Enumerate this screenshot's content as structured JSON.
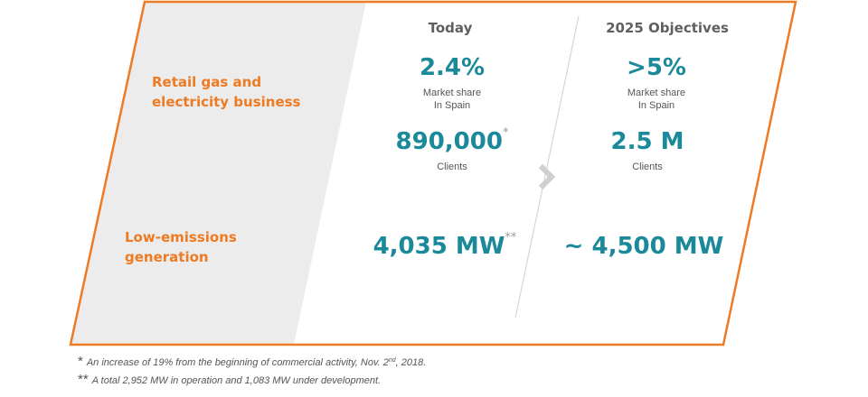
{
  "columns": {
    "today": "Today",
    "objectives": "2025 Objectives"
  },
  "rows": {
    "retail": {
      "label_line1": "Retail gas and",
      "label_line2": "electricity business"
    },
    "low_emissions": {
      "label_line1": "Low-emissions",
      "label_line2": "generation"
    }
  },
  "today": {
    "market_share": {
      "value": "2.4%",
      "caption_line1": "Market share",
      "caption_line2": "In Spain"
    },
    "clients": {
      "value": "890,000",
      "marker": "*",
      "caption": "Clients"
    },
    "generation": {
      "value": "4,035 MW",
      "marker": "**"
    }
  },
  "objectives": {
    "market_share": {
      "value": ">5%",
      "caption_line1": "Market share",
      "caption_line2": "In Spain"
    },
    "clients": {
      "value": "2.5 M",
      "caption": "Clients"
    },
    "generation": {
      "value": "~ 4,500 MW"
    }
  },
  "footnotes": {
    "note1": {
      "marker": "*",
      "text_before": "An increase of 19% from the beginning of commercial activity, Nov. 2",
      "superscript": "nd",
      "text_after": ", 2018."
    },
    "note2": {
      "marker": "**",
      "text": "A total 2,952 MW in operation and 1,083 MW under development."
    }
  },
  "colors": {
    "frame_orange": "#ee7a22",
    "value_teal": "#1a8a9a",
    "label_gray": "#5f5f5f",
    "panel_gray": "#ececec"
  }
}
